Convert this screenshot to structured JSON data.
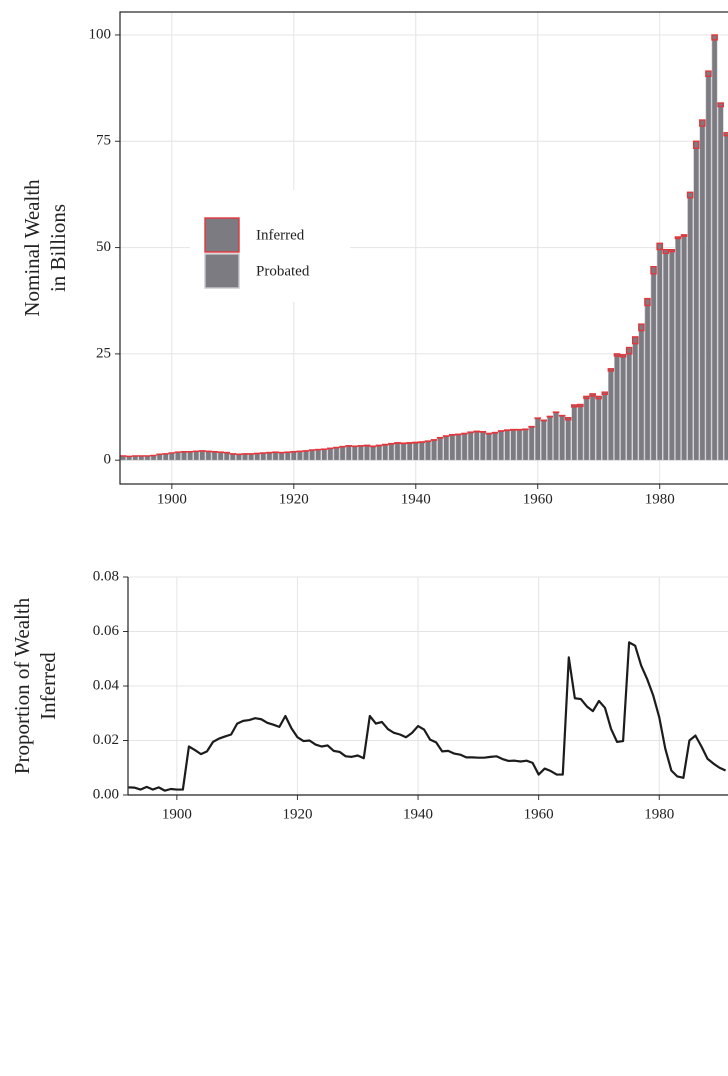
{
  "chart_data": [
    {
      "type": "bar",
      "stacked": true,
      "ylabel": [
        "Nominal Wealth",
        "in Billions"
      ],
      "x": [
        1892,
        1893,
        1894,
        1895,
        1896,
        1897,
        1898,
        1899,
        1900,
        1901,
        1902,
        1903,
        1904,
        1905,
        1906,
        1907,
        1908,
        1909,
        1910,
        1911,
        1912,
        1913,
        1914,
        1915,
        1916,
        1917,
        1918,
        1919,
        1920,
        1921,
        1922,
        1923,
        1924,
        1925,
        1926,
        1927,
        1928,
        1929,
        1930,
        1931,
        1932,
        1933,
        1934,
        1935,
        1936,
        1937,
        1938,
        1939,
        1940,
        1941,
        1942,
        1943,
        1944,
        1945,
        1946,
        1947,
        1948,
        1949,
        1950,
        1951,
        1952,
        1953,
        1954,
        1955,
        1956,
        1957,
        1958,
        1959,
        1960,
        1961,
        1962,
        1963,
        1964,
        1965,
        1966,
        1967,
        1968,
        1969,
        1970,
        1971,
        1972,
        1973,
        1974,
        1975,
        1976,
        1977,
        1978,
        1979,
        1980,
        1981,
        1982,
        1983,
        1984,
        1985,
        1986,
        1987,
        1988,
        1989,
        1990,
        1991
      ],
      "series": [
        {
          "name": "Probated",
          "color": "#7b7b81",
          "edge_color": "#c9c9cd",
          "values": [
            1.0,
            0.9,
            1.0,
            1.0,
            1.0,
            1.1,
            1.4,
            1.5,
            1.7,
            1.9,
            1.96,
            1.97,
            2.07,
            2.17,
            2.06,
            1.96,
            1.86,
            1.76,
            1.46,
            1.36,
            1.46,
            1.46,
            1.56,
            1.66,
            1.75,
            1.85,
            1.75,
            1.85,
            1.96,
            2.06,
            2.16,
            2.36,
            2.46,
            2.55,
            2.76,
            2.95,
            3.16,
            3.35,
            3.25,
            3.35,
            3.4,
            3.21,
            3.41,
            3.61,
            3.81,
            4.01,
            3.92,
            4.01,
            4.09,
            4.2,
            4.41,
            4.71,
            5.22,
            5.61,
            5.91,
            6.01,
            6.21,
            6.51,
            6.71,
            6.61,
            6.21,
            6.41,
            6.81,
            7.01,
            7.11,
            7.11,
            7.21,
            7.81,
            9.83,
            9.31,
            10.21,
            11.22,
            10.42,
            9.49,
            12.54,
            12.64,
            14.51,
            15.12,
            14.48,
            15.49,
            20.98,
            24.51,
            24.31,
            25.02,
            27.41,
            30.48,
            36.38,
            43.84,
            49.55,
            48.66,
            49.05,
            52.14,
            52.67,
            61.74,
            73.36,
            78.58,
            90.28,
            98.85,
            83.16,
            76.31
          ]
        },
        {
          "name": "Inferred",
          "color": "#7b7b81",
          "edge_color": "#e3363c",
          "values": [
            0.003,
            0.002,
            0.002,
            0.003,
            0.002,
            0.003,
            0.002,
            0.003,
            0.003,
            0.004,
            0.036,
            0.033,
            0.032,
            0.035,
            0.041,
            0.041,
            0.041,
            0.04,
            0.039,
            0.038,
            0.041,
            0.042,
            0.044,
            0.045,
            0.046,
            0.048,
            0.052,
            0.047,
            0.042,
            0.042,
            0.044,
            0.044,
            0.045,
            0.047,
            0.045,
            0.047,
            0.045,
            0.048,
            0.048,
            0.046,
            0.1,
            0.086,
            0.094,
            0.09,
            0.089,
            0.091,
            0.085,
            0.093,
            0.11,
            0.1,
            0.091,
            0.093,
            0.085,
            0.092,
            0.091,
            0.09,
            0.087,
            0.091,
            0.093,
            0.092,
            0.088,
            0.092,
            0.091,
            0.089,
            0.091,
            0.089,
            0.092,
            0.093,
            0.074,
            0.091,
            0.091,
            0.085,
            0.079,
            0.51,
            0.46,
            0.46,
            0.49,
            0.48,
            0.52,
            0.51,
            0.52,
            0.49,
            0.49,
            1.48,
            1.59,
            1.52,
            1.62,
            1.66,
            1.45,
            0.84,
            0.45,
            0.36,
            0.33,
            1.26,
            1.64,
            1.42,
            1.22,
            1.15,
            0.84,
            0.69
          ]
        }
      ],
      "xlim": [
        1891.5,
        1991.2
      ],
      "xticks": [
        1900,
        1920,
        1940,
        1960,
        1980
      ],
      "ylim": [
        -5.6,
        105.4
      ],
      "yticks": [
        0,
        25,
        50,
        75,
        100
      ],
      "grid": true,
      "legend_position": "center left"
    },
    {
      "type": "line",
      "ylabel": [
        "Proportion of Wealth",
        "Inferred"
      ],
      "x": [
        1892,
        1893,
        1894,
        1895,
        1896,
        1897,
        1898,
        1899,
        1900,
        1901,
        1902,
        1903,
        1904,
        1905,
        1906,
        1907,
        1908,
        1909,
        1910,
        1911,
        1912,
        1913,
        1914,
        1915,
        1916,
        1917,
        1918,
        1919,
        1920,
        1921,
        1922,
        1923,
        1924,
        1925,
        1926,
        1927,
        1928,
        1929,
        1930,
        1931,
        1932,
        1933,
        1934,
        1935,
        1936,
        1937,
        1938,
        1939,
        1940,
        1941,
        1942,
        1943,
        1944,
        1945,
        1946,
        1947,
        1948,
        1949,
        1950,
        1951,
        1952,
        1953,
        1954,
        1955,
        1956,
        1957,
        1958,
        1959,
        1960,
        1961,
        1962,
        1963,
        1964,
        1965,
        1966,
        1967,
        1968,
        1969,
        1970,
        1971,
        1972,
        1973,
        1974,
        1975,
        1976,
        1977,
        1978,
        1979,
        1980,
        1981,
        1982,
        1983,
        1984,
        1985,
        1986,
        1987,
        1988,
        1989,
        1990,
        1991
      ],
      "values": [
        0.0028,
        0.0027,
        0.002,
        0.003,
        0.002,
        0.0028,
        0.0016,
        0.0022,
        0.002,
        0.002,
        0.0178,
        0.0165,
        0.015,
        0.016,
        0.0195,
        0.0207,
        0.0215,
        0.0222,
        0.0262,
        0.0272,
        0.0275,
        0.0282,
        0.0278,
        0.0265,
        0.0258,
        0.025,
        0.029,
        0.0245,
        0.0212,
        0.0198,
        0.02,
        0.0185,
        0.0178,
        0.0182,
        0.0162,
        0.0158,
        0.0142,
        0.014,
        0.0145,
        0.0135,
        0.029,
        0.0262,
        0.0268,
        0.0242,
        0.0228,
        0.0222,
        0.0212,
        0.0228,
        0.0253,
        0.024,
        0.0203,
        0.0193,
        0.016,
        0.0162,
        0.0152,
        0.0148,
        0.0138,
        0.0138,
        0.0137,
        0.0137,
        0.014,
        0.0142,
        0.0132,
        0.0125,
        0.0126,
        0.0123,
        0.0126,
        0.0118,
        0.0075,
        0.0097,
        0.0088,
        0.0075,
        0.0075,
        0.0505,
        0.0355,
        0.0352,
        0.0325,
        0.0308,
        0.0345,
        0.032,
        0.0243,
        0.0195,
        0.0198,
        0.056,
        0.0548,
        0.0475,
        0.0425,
        0.0365,
        0.0285,
        0.017,
        0.009,
        0.0068,
        0.0063,
        0.02,
        0.0218,
        0.0178,
        0.0133,
        0.0115,
        0.01,
        0.009
      ],
      "color": "#1c1c1c",
      "xlim": [
        1891.9,
        1991.4
      ],
      "xticks": [
        1900,
        1920,
        1940,
        1960,
        1980
      ],
      "ylim": [
        0,
        0.08
      ],
      "yticks": [
        {
          "value": 0,
          "label": "0.00"
        },
        {
          "value": 0.02,
          "label": "0.02"
        },
        {
          "value": 0.04,
          "label": "0.04"
        },
        {
          "value": 0.06,
          "label": "0.06"
        },
        {
          "value": 0.08,
          "label": "0.08"
        }
      ],
      "grid": true
    }
  ]
}
